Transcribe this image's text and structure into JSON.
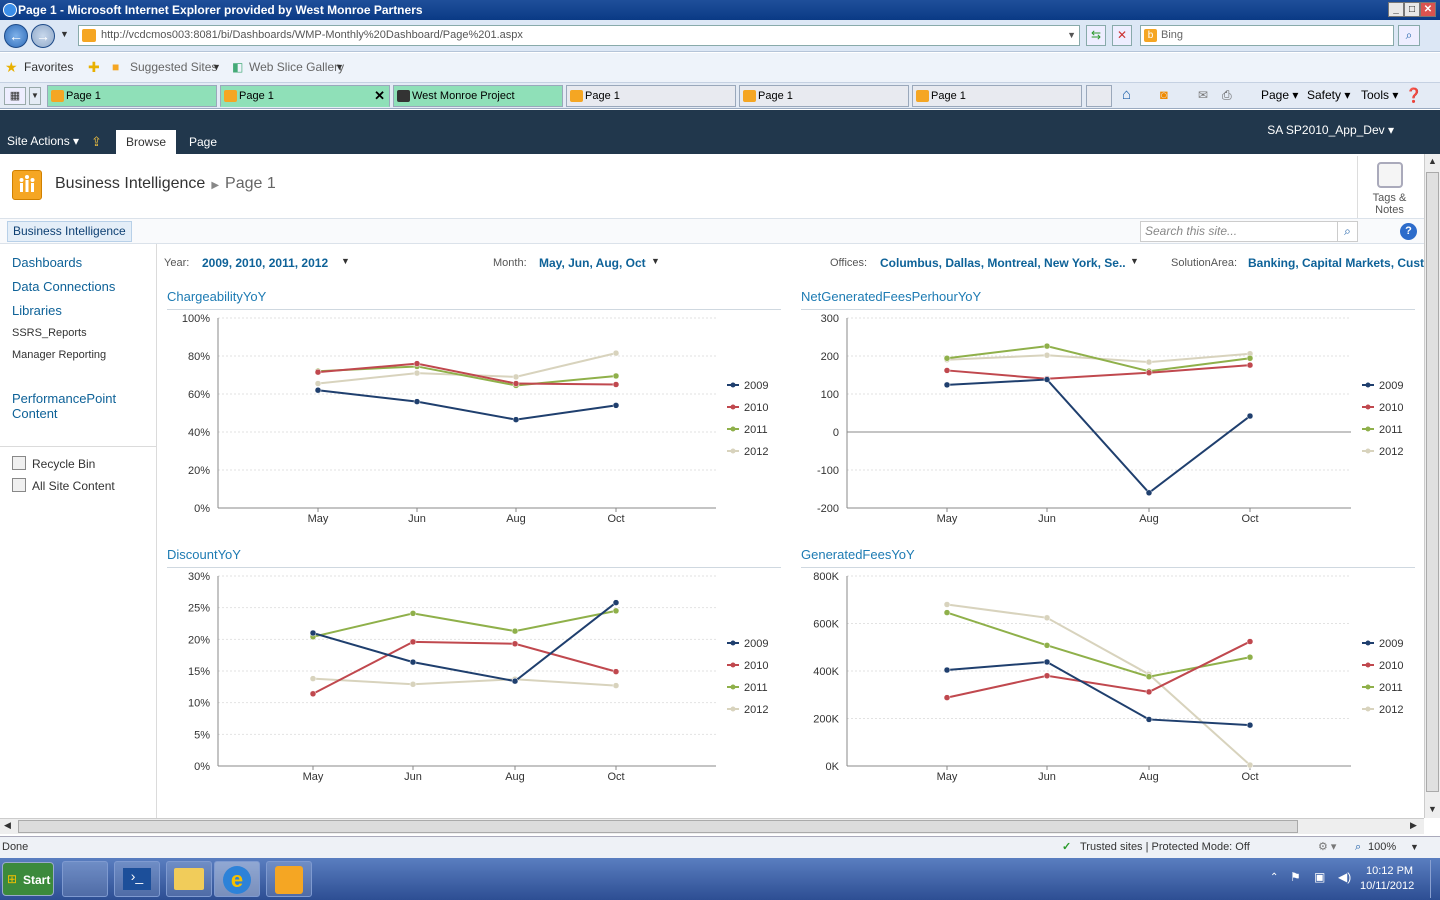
{
  "window": {
    "title": "Page 1 - Microsoft Internet Explorer provided by West Monroe Partners"
  },
  "browser": {
    "url": "http://vcdcmos003:8081/bi/Dashboards/WMP-Monthly%20Dashboard/Page%201.aspx",
    "search_placeholder": "Bing",
    "favorites": {
      "label": "Favorites",
      "suggested": "Suggested Sites",
      "webslice": "Web Slice Gallery"
    },
    "tabs": [
      {
        "label": "Page 1"
      },
      {
        "label": "Page 1"
      },
      {
        "label": "West Monroe Project"
      },
      {
        "label": "Page 1"
      },
      {
        "label": "Page 1"
      },
      {
        "label": "Page 1"
      }
    ],
    "commands": {
      "page": "Page",
      "safety": "Safety",
      "tools": "Tools"
    }
  },
  "ribbon": {
    "site_actions": "Site Actions",
    "tab_browse": "Browse",
    "tab_page": "Page",
    "user": "SA SP2010_App_Dev"
  },
  "header": {
    "site": "Business Intelligence",
    "page": "Page 1",
    "tags": "Tags & Notes",
    "tags_line1": "Tags &",
    "tags_line2": "Notes"
  },
  "topnav": {
    "home": "Business Intelligence",
    "search_placeholder": "Search this site..."
  },
  "quicklaunch": {
    "items": [
      "Dashboards",
      "Data Connections",
      "Libraries",
      "SSRS_Reports",
      "Manager Reporting",
      "PerformancePoint Content"
    ],
    "recycle": "Recycle Bin",
    "all_content": "All Site Content"
  },
  "filters": {
    "year_label": "Year:",
    "year_value": "2009, 2010, 2011, 2012",
    "month_label": "Month:",
    "month_value": "May, Jun, Aug, Oct",
    "offices_label": "Offices:",
    "offices_value": "Columbus, Dallas, Montreal, New York, Se...",
    "solution_label": "SolutionArea:",
    "solution_value": "Banking, Capital Markets, Custo"
  },
  "colors": {
    "2009": "#1f3f6e",
    "2010": "#c0484e",
    "2011": "#8fb04a",
    "2012": "#d8d3bd"
  },
  "chart_data": [
    {
      "type": "line",
      "title": "ChargeabilityYoY",
      "categories": [
        "May",
        "Jun",
        "Aug",
        "Oct"
      ],
      "ylim": [
        0,
        100
      ],
      "yticks": [
        "0%",
        "20%",
        "40%",
        "60%",
        "80%",
        "100%"
      ],
      "ytick_values": [
        0,
        20,
        40,
        60,
        80,
        100
      ],
      "series": [
        {
          "name": "2009",
          "values": [
            62,
            56,
            46.5,
            54
          ]
        },
        {
          "name": "2010",
          "values": [
            71.5,
            76,
            65.5,
            65
          ]
        },
        {
          "name": "2011",
          "values": [
            72,
            74.5,
            64.5,
            69.5
          ]
        },
        {
          "name": "2012",
          "values": [
            65.5,
            71,
            69,
            81.5
          ]
        }
      ]
    },
    {
      "type": "line",
      "title": "NetGeneratedFeesPerhourYoY",
      "categories": [
        "May",
        "Jun",
        "Aug",
        "Oct"
      ],
      "ylim": [
        -200,
        300
      ],
      "yticks": [
        "-200",
        "-100",
        "0",
        "100",
        "200",
        "300"
      ],
      "ytick_values": [
        -200,
        -100,
        0,
        100,
        200,
        300
      ],
      "series": [
        {
          "name": "2009",
          "values": [
            124,
            138,
            -160,
            42
          ]
        },
        {
          "name": "2010",
          "values": [
            162,
            140,
            156,
            176
          ]
        },
        {
          "name": "2011",
          "values": [
            194,
            226,
            160,
            194
          ]
        },
        {
          "name": "2012",
          "values": [
            190,
            202,
            184,
            206
          ]
        }
      ]
    },
    {
      "type": "line",
      "title": "DiscountYoY",
      "categories": [
        "May",
        "Jun",
        "Aug",
        "Oct"
      ],
      "ylim": [
        0,
        30
      ],
      "yticks": [
        "0%",
        "5%",
        "10%",
        "15%",
        "20%",
        "25%",
        "30%"
      ],
      "ytick_values": [
        0,
        5,
        10,
        15,
        20,
        25,
        30
      ],
      "series": [
        {
          "name": "2009",
          "values": [
            21,
            16.4,
            13.4,
            25.8
          ]
        },
        {
          "name": "2010",
          "values": [
            11.4,
            19.6,
            19.3,
            14.9
          ]
        },
        {
          "name": "2011",
          "values": [
            20.4,
            24.1,
            21.3,
            24.5
          ]
        },
        {
          "name": "2012",
          "values": [
            13.8,
            12.9,
            13.7,
            12.7
          ]
        }
      ]
    },
    {
      "type": "line",
      "title": "GeneratedFeesYoY",
      "categories": [
        "May",
        "Jun",
        "Aug",
        "Oct"
      ],
      "ylim": [
        0,
        800000
      ],
      "yticks": [
        "0K",
        "200K",
        "400K",
        "600K",
        "800K"
      ],
      "ytick_values": [
        0,
        200000,
        400000,
        600000,
        800000
      ],
      "series": [
        {
          "name": "2009",
          "values": [
            404000,
            438000,
            196000,
            172000
          ]
        },
        {
          "name": "2010",
          "values": [
            288000,
            380000,
            312000,
            524000
          ]
        },
        {
          "name": "2011",
          "values": [
            646000,
            508000,
            376000,
            458000
          ]
        },
        {
          "name": "2012",
          "values": [
            680000,
            624000,
            386000,
            4000
          ]
        }
      ]
    }
  ],
  "status": {
    "left": "Done",
    "zone": "Trusted sites | Protected Mode: Off",
    "zoom": "100%"
  },
  "taskbar": {
    "start": "Start",
    "time": "10:12 PM",
    "date": "10/11/2012"
  }
}
